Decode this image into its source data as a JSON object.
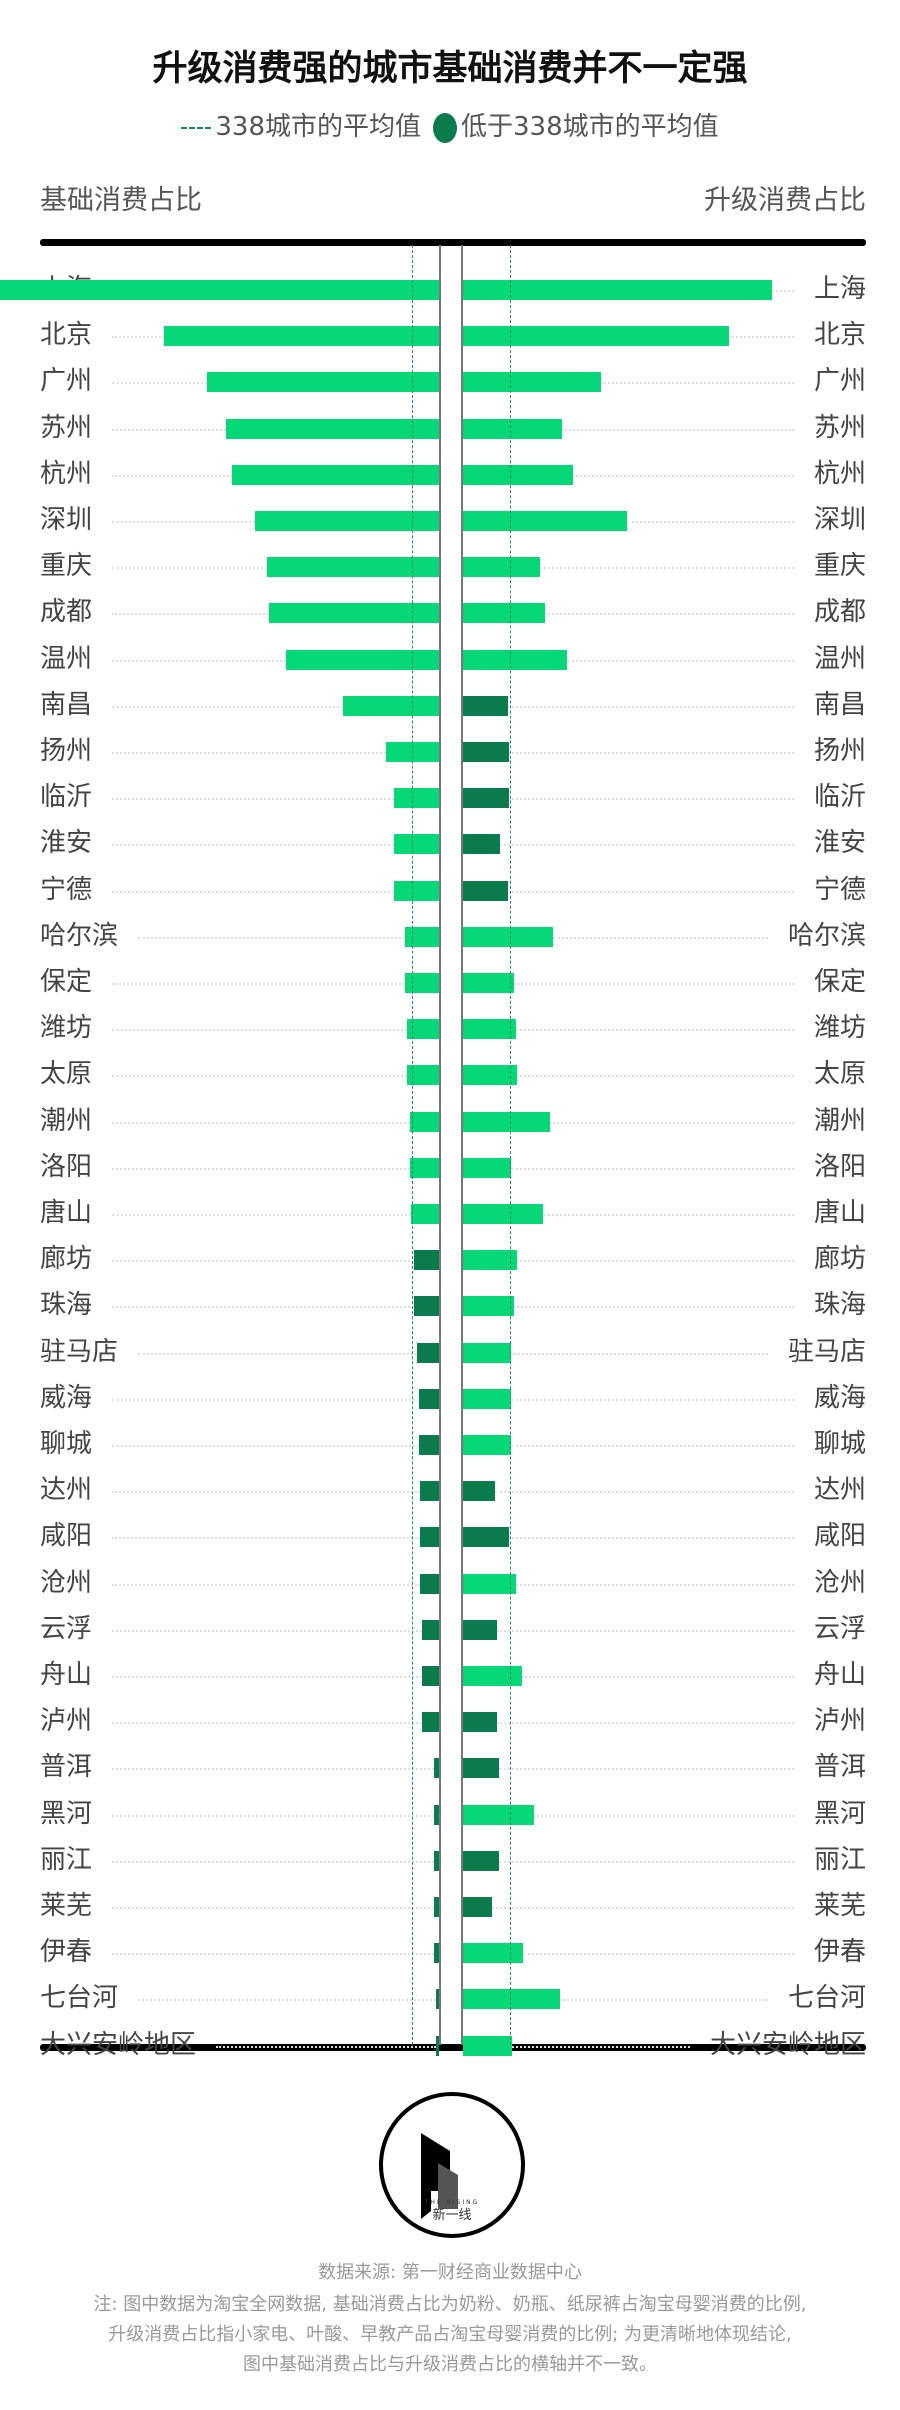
{
  "chart_data": {
    "type": "bar",
    "title": "升级消费强的城市基础消费并不一定强",
    "legend": {
      "average_label": "338城市的平均值",
      "below_label": "低于338城市的平均值"
    },
    "left_axis_label": "基础消费占比",
    "right_axis_label": "升级消费占比",
    "colors": {
      "above_average": "#06d877",
      "below_average": "#0b7a4d",
      "average_line": "#2a8a66"
    },
    "averages": {
      "basic": 17.5,
      "upgrade": 30.4
    },
    "categories": [
      "上海",
      "北京",
      "广州",
      "苏州",
      "杭州",
      "深圳",
      "重庆",
      "成都",
      "温州",
      "南昌",
      "扬州",
      "临沂",
      "淮安",
      "宁德",
      "哈尔滨",
      "保定",
      "潍坊",
      "太原",
      "潮州",
      "洛阳",
      "唐山",
      "廊坊",
      "珠海",
      "驻马店",
      "威海",
      "聊城",
      "达州",
      "咸阳",
      "沧州",
      "云浮",
      "舟山",
      "泸州",
      "普洱",
      "黑河",
      "丽江",
      "莱芜",
      "伊春",
      "七台河",
      "大兴安岭地区"
    ],
    "series": [
      {
        "name": "基础消费占比",
        "values": [
          300,
          178,
          150,
          138,
          134,
          119,
          111,
          110,
          99,
          62,
          34,
          29,
          29,
          29,
          22,
          22,
          21,
          21,
          19,
          19,
          18,
          16,
          16,
          14,
          13,
          13,
          12,
          12,
          12,
          11,
          11,
          11,
          3,
          3,
          3,
          3,
          3,
          2,
          2
        ]
      },
      {
        "name": "升级消费占比",
        "values": [
          200,
          172,
          89,
          64,
          71,
          106,
          50,
          53,
          67,
          29,
          30,
          30,
          24,
          29,
          58,
          33,
          34,
          35,
          56,
          31,
          52,
          35,
          33,
          31,
          31,
          31,
          21,
          30,
          34,
          22,
          38,
          22,
          23,
          46,
          23,
          19,
          39,
          63,
          32
        ]
      }
    ],
    "note": "relative bar lengths; chart prints no axis ticks"
  },
  "footer": {
    "logo_text_en": "THE RISING",
    "logo_text_cn": "新一线",
    "source": "数据来源: 第一财经商业数据中心",
    "notes": [
      "注: 图中数据为淘宝全网数据, 基础消费占比为奶粉、奶瓶、纸尿裤占淘宝母婴消费的比例,",
      "升级消费占比指小家电、叶酸、早教产品占淘宝母婴消费的比例; 为更清晰地体现结论,",
      "图中基础消费占比与升级消费占比的横轴并不一致。"
    ]
  }
}
